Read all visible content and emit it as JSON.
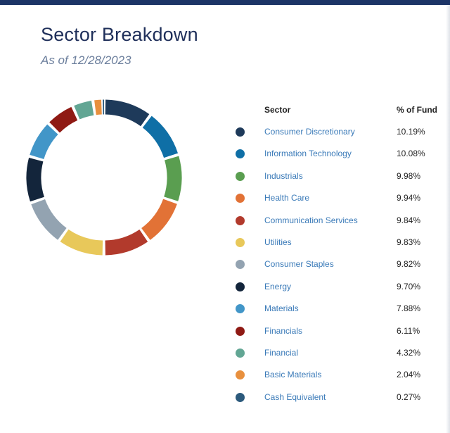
{
  "header": {
    "title": "Sector Breakdown",
    "subtitle": "As of 12/28/2023"
  },
  "table": {
    "col_sector": "Sector",
    "col_pct": "% of Fund"
  },
  "chart_data": {
    "type": "pie",
    "variant": "donut",
    "title": "Sector Breakdown",
    "subtitle": "As of 12/28/2023",
    "categories": [
      "Consumer Discretionary",
      "Information Technology",
      "Industrials",
      "Health Care",
      "Communication Services",
      "Utilities",
      "Consumer Staples",
      "Energy",
      "Materials",
      "Financials",
      "Financial",
      "Basic Materials",
      "Cash Equivalent"
    ],
    "values": [
      10.19,
      10.08,
      9.98,
      9.94,
      9.84,
      9.83,
      9.82,
      9.7,
      7.88,
      6.11,
      4.32,
      2.04,
      0.27
    ],
    "labels": [
      "10.19%",
      "10.08%",
      "9.98%",
      "9.94%",
      "9.84%",
      "9.83%",
      "9.82%",
      "9.70%",
      "7.88%",
      "6.11%",
      "4.32%",
      "2.04%",
      "0.27%"
    ],
    "colors": [
      "#1e3a5a",
      "#0f6fa6",
      "#5a9e50",
      "#e27236",
      "#b23a2c",
      "#e8c85a",
      "#93a3b1",
      "#13253b",
      "#4296c8",
      "#8f1a14",
      "#62a694",
      "#e8903e",
      "#2c5a7c"
    ],
    "start": "12 o'clock",
    "direction": "clockwise",
    "legend": "right"
  }
}
